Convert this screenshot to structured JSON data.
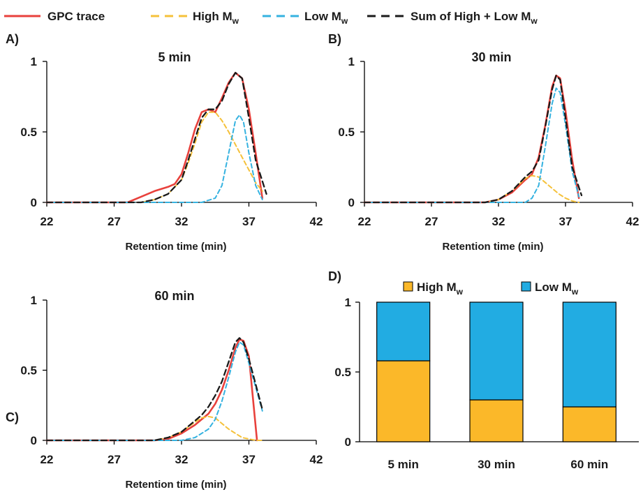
{
  "legend_top": {
    "items": [
      {
        "label": "GPC trace",
        "sub": "",
        "color": "#e8413c",
        "dash": "solid"
      },
      {
        "label": "High M",
        "sub": "w",
        "color": "#f5c13a",
        "dash": "dashed"
      },
      {
        "label": "Low M",
        "sub": "w",
        "color": "#35b2e0",
        "dash": "dashed"
      },
      {
        "label": "Sum of High + Low M",
        "sub": "w",
        "color": "#1a1a1a",
        "dash": "dashed"
      }
    ]
  },
  "chart_data": [
    {
      "type": "line",
      "panel_label": "A)",
      "title": "5 min",
      "xlabel": "Retention time (min)",
      "ylabel": "",
      "xlim": [
        22,
        42
      ],
      "ylim": [
        0,
        1
      ],
      "xticks": [
        "22",
        "27",
        "32",
        "37",
        "42"
      ],
      "yticks": [
        "0",
        "0.5",
        "1"
      ],
      "series": [
        {
          "name": "GPC trace",
          "x": [
            22,
            28,
            29,
            30,
            31,
            31.5,
            32,
            32.5,
            33,
            33.5,
            34,
            34.5,
            35,
            35.5,
            36,
            36.5,
            37,
            37.5,
            38
          ],
          "y": [
            0,
            0,
            0.04,
            0.08,
            0.11,
            0.13,
            0.2,
            0.35,
            0.52,
            0.64,
            0.66,
            0.64,
            0.74,
            0.85,
            0.92,
            0.88,
            0.66,
            0.35,
            0.03
          ]
        },
        {
          "name": "High Mw",
          "x": [
            22,
            29,
            30,
            31,
            32,
            32.5,
            33,
            33.5,
            34,
            34.5,
            35,
            35.5,
            36,
            36.5,
            37,
            37.5,
            38
          ],
          "y": [
            0,
            0,
            0.02,
            0.06,
            0.16,
            0.28,
            0.42,
            0.57,
            0.64,
            0.64,
            0.58,
            0.5,
            0.41,
            0.32,
            0.23,
            0.14,
            0.08
          ]
        },
        {
          "name": "Low Mw",
          "x": [
            22,
            33.5,
            34.5,
            35,
            35.5,
            36,
            36.3,
            36.6,
            37,
            37.5,
            38
          ],
          "y": [
            0,
            0,
            0.03,
            0.12,
            0.35,
            0.58,
            0.62,
            0.57,
            0.35,
            0.12,
            0.02
          ]
        },
        {
          "name": "Sum of High + Low Mw",
          "x": [
            22,
            29,
            30,
            31,
            32,
            32.5,
            33,
            33.5,
            34,
            34.5,
            35,
            35.5,
            36,
            36.5,
            37,
            37.5,
            38.3
          ],
          "y": [
            0,
            0,
            0.02,
            0.06,
            0.16,
            0.3,
            0.45,
            0.6,
            0.66,
            0.66,
            0.72,
            0.84,
            0.92,
            0.88,
            0.6,
            0.3,
            0.06
          ]
        }
      ]
    },
    {
      "type": "line",
      "panel_label": "B)",
      "title": "30 min",
      "xlabel": "Retention time (min)",
      "ylabel": "",
      "xlim": [
        22,
        42
      ],
      "ylim": [
        0,
        1
      ],
      "xticks": [
        "22",
        "27",
        "32",
        "37",
        "42"
      ],
      "yticks": [
        "0",
        "0.5",
        "1"
      ],
      "series": [
        {
          "name": "GPC trace",
          "x": [
            22,
            31,
            32,
            33,
            34,
            34.5,
            35,
            35.5,
            36,
            36.3,
            36.6,
            37,
            37.5,
            38
          ],
          "y": [
            0,
            0,
            0.02,
            0.07,
            0.16,
            0.2,
            0.32,
            0.55,
            0.82,
            0.9,
            0.88,
            0.65,
            0.3,
            0.03
          ]
        },
        {
          "name": "High Mw",
          "x": [
            22,
            31,
            32,
            33,
            34,
            34.5,
            35,
            35.5,
            36,
            36.5,
            37,
            37.5,
            38
          ],
          "y": [
            0,
            0,
            0.02,
            0.08,
            0.17,
            0.19,
            0.18,
            0.14,
            0.1,
            0.06,
            0.03,
            0.01,
            0
          ]
        },
        {
          "name": "Low Mw",
          "x": [
            22,
            34,
            34.5,
            35,
            35.5,
            36,
            36.3,
            36.6,
            37,
            37.5,
            38
          ],
          "y": [
            0,
            0,
            0.03,
            0.12,
            0.4,
            0.7,
            0.81,
            0.78,
            0.55,
            0.22,
            0.04
          ]
        },
        {
          "name": "Sum of High + Low Mw",
          "x": [
            22,
            31,
            32,
            33,
            34,
            34.5,
            35,
            35.5,
            36,
            36.3,
            36.6,
            37,
            37.5,
            38.2
          ],
          "y": [
            0,
            0,
            0.02,
            0.08,
            0.18,
            0.22,
            0.3,
            0.54,
            0.8,
            0.9,
            0.87,
            0.6,
            0.25,
            0.05
          ]
        }
      ]
    },
    {
      "type": "line",
      "panel_label": "C)",
      "title": "60 min",
      "xlabel": "Retention time (min)",
      "ylabel": "",
      "xlim": [
        22,
        42
      ],
      "ylim": [
        0,
        1
      ],
      "xticks": [
        "22",
        "27",
        "32",
        "37",
        "42"
      ],
      "yticks": [
        "0",
        "0.5",
        "1"
      ],
      "series": [
        {
          "name": "GPC trace",
          "x": [
            22,
            30,
            31,
            32,
            33,
            33.5,
            34,
            34.5,
            35,
            35.5,
            36,
            36.3,
            36.6,
            37,
            37.3,
            37.6
          ],
          "y": [
            0,
            0,
            0.01,
            0.05,
            0.11,
            0.15,
            0.19,
            0.26,
            0.36,
            0.5,
            0.66,
            0.72,
            0.71,
            0.6,
            0.3,
            0
          ]
        },
        {
          "name": "High Mw",
          "x": [
            22,
            30,
            31,
            32,
            33,
            33.5,
            34,
            34.5,
            35,
            35.5,
            36,
            36.5,
            37,
            37.5,
            38
          ],
          "y": [
            0,
            0,
            0.02,
            0.06,
            0.13,
            0.16,
            0.17,
            0.16,
            0.12,
            0.08,
            0.05,
            0.02,
            0.01,
            0,
            0
          ]
        },
        {
          "name": "Low Mw",
          "x": [
            22,
            32,
            33,
            34,
            34.5,
            35,
            35.5,
            36,
            36.3,
            36.6,
            37,
            37.5,
            38
          ],
          "y": [
            0,
            0,
            0.02,
            0.08,
            0.15,
            0.28,
            0.45,
            0.63,
            0.7,
            0.68,
            0.55,
            0.38,
            0.21
          ]
        },
        {
          "name": "Sum of High + Low Mw",
          "x": [
            22,
            30,
            31,
            32,
            33,
            33.5,
            34,
            34.5,
            35,
            35.5,
            36,
            36.3,
            36.6,
            37,
            37.5,
            38
          ],
          "y": [
            0,
            0,
            0.02,
            0.06,
            0.14,
            0.18,
            0.24,
            0.32,
            0.42,
            0.56,
            0.7,
            0.73,
            0.7,
            0.58,
            0.4,
            0.22
          ]
        }
      ]
    },
    {
      "type": "bar",
      "stacked": true,
      "panel_label": "D)",
      "title": "",
      "categories": [
        "5 min",
        "30 min",
        "60 min"
      ],
      "ylim": [
        0,
        1
      ],
      "yticks": [
        "0",
        "0.5",
        "1"
      ],
      "legend": "top",
      "series": [
        {
          "name": "High Mw",
          "label": "High M",
          "sub": "w",
          "color": "#fbb829",
          "values": [
            0.58,
            0.3,
            0.25
          ]
        },
        {
          "name": "Low Mw",
          "label": "Low M",
          "sub": "w",
          "color": "#22ace2",
          "values": [
            0.42,
            0.7,
            0.75
          ]
        }
      ]
    }
  ]
}
